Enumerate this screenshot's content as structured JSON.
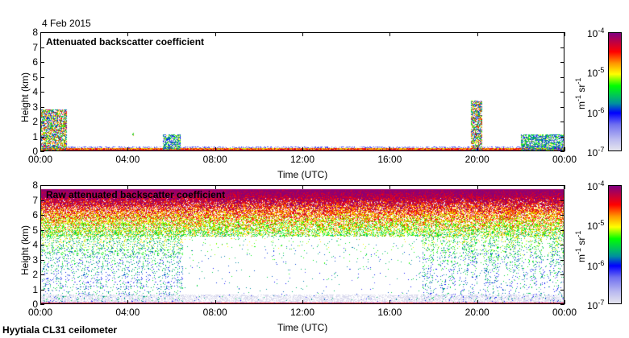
{
  "header": {
    "date": "4 Feb 2015"
  },
  "footer": {
    "instrument": "Hyytiala CL31 ceilometer"
  },
  "colors": {
    "colormap": [
      "#e4e4ee",
      "#7070f0",
      "#0000ff",
      "#008f9f",
      "#00ff00",
      "#ffff00",
      "#ff9900",
      "#ff0000",
      "#800080"
    ]
  },
  "chart_data": [
    {
      "type": "heatmap",
      "title": "Attenuated backscatter coefficient",
      "xlabel": "Time (UTC)",
      "ylabel": "Height (km)",
      "xlim": [
        0,
        24
      ],
      "ylim": [
        0,
        8
      ],
      "xticks": [
        "00:00",
        "04:00",
        "08:00",
        "12:00",
        "16:00",
        "20:00",
        "00:00"
      ],
      "yticks": [
        "0",
        "1",
        "2",
        "3",
        "4",
        "5",
        "6",
        "7",
        "8"
      ],
      "colorbar": {
        "scale": "log",
        "range": [
          1e-07,
          0.0001
        ],
        "ticks": [
          "10",
          "10",
          "10",
          "10"
        ],
        "exponents": [
          "-4",
          "-5",
          "-6",
          "-7"
        ],
        "unit_base": "m",
        "unit_exp1": "-1",
        "unit_mid": " sr",
        "unit_exp2": "-1"
      },
      "features": [
        {
          "t": [
            0,
            1.2
          ],
          "h": [
            0,
            2.8
          ],
          "level": "high"
        },
        {
          "t": [
            4.2,
            4.25
          ],
          "h": [
            1.0,
            1.2
          ],
          "level": "high"
        },
        {
          "t": [
            5.6,
            6.4
          ],
          "h": [
            0.1,
            1.1
          ],
          "level": "medium"
        },
        {
          "t": [
            19.7,
            20.2
          ],
          "h": [
            0,
            3.4
          ],
          "level": "high"
        },
        {
          "t": [
            22.0,
            24
          ],
          "h": [
            0,
            1.1
          ],
          "level": "medium"
        },
        {
          "t": [
            0,
            24
          ],
          "h": [
            0,
            0.2
          ],
          "level": "surface"
        }
      ]
    },
    {
      "type": "heatmap",
      "title": "Raw attenuated backscatter coefficient",
      "xlabel": "Time (UTC)",
      "ylabel": "Height (km)",
      "xlim": [
        0,
        24
      ],
      "ylim": [
        0,
        8
      ],
      "xticks": [
        "00:00",
        "04:00",
        "08:00",
        "12:00",
        "16:00",
        "20:00",
        "00:00"
      ],
      "yticks": [
        "0",
        "1",
        "2",
        "3",
        "4",
        "5",
        "6",
        "7",
        "8"
      ],
      "colorbar": {
        "scale": "log",
        "range": [
          1e-07,
          0.0001
        ],
        "ticks": [
          "10",
          "10",
          "10",
          "10"
        ],
        "exponents": [
          "-4",
          "-5",
          "-6",
          "-7"
        ],
        "unit_base": "m",
        "unit_exp1": "-1",
        "unit_mid": " sr",
        "unit_exp2": "-1"
      },
      "data_top_km": 7.7,
      "clear_gaps": [
        [
          6.5,
          12.5
        ],
        [
          12.5,
          17.5
        ]
      ]
    }
  ]
}
